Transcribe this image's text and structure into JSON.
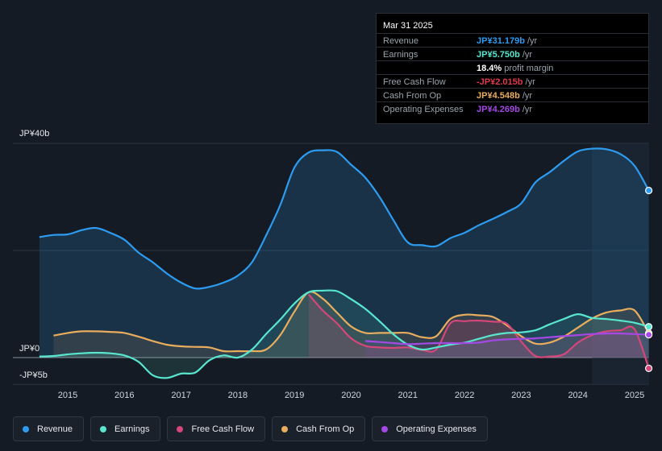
{
  "chart_data": {
    "type": "line",
    "currency": "JPY",
    "units": "billion JPY",
    "ylim": [
      -5,
      40
    ],
    "y_tick_labels": {
      "top": "JP¥40b",
      "zero": "JP¥0",
      "bottom": "-JP¥5b"
    },
    "x_tick_labels": [
      "2015",
      "2016",
      "2017",
      "2018",
      "2019",
      "2020",
      "2021",
      "2022",
      "2023",
      "2024",
      "2025"
    ],
    "highlight_start": 2024.25,
    "series": [
      {
        "name": "Revenue",
        "color": "#2d9cf0",
        "x": [
          2014.5,
          2014.75,
          2015.0,
          2015.25,
          2015.5,
          2015.75,
          2016.0,
          2016.25,
          2016.5,
          2016.75,
          2017.0,
          2017.25,
          2017.5,
          2017.75,
          2018.0,
          2018.25,
          2018.5,
          2018.75,
          2019.0,
          2019.25,
          2019.5,
          2019.75,
          2020.0,
          2020.25,
          2020.5,
          2020.75,
          2021.0,
          2021.25,
          2021.5,
          2021.75,
          2022.0,
          2022.25,
          2022.5,
          2022.75,
          2023.0,
          2023.25,
          2023.5,
          2023.75,
          2024.0,
          2024.25,
          2024.5,
          2024.75,
          2025.0,
          2025.25
        ],
        "y": [
          22.5,
          22.9,
          23.0,
          23.8,
          24.2,
          23.3,
          22.0,
          19.6,
          17.8,
          15.7,
          14.0,
          12.9,
          13.2,
          14.0,
          15.3,
          17.8,
          22.8,
          28.5,
          35.5,
          38.3,
          38.7,
          38.4,
          36.0,
          33.6,
          30.0,
          25.6,
          21.5,
          21.0,
          20.8,
          22.3,
          23.3,
          24.7,
          25.9,
          27.2,
          28.8,
          32.7,
          34.6,
          36.7,
          38.5,
          39.0,
          38.9,
          38.0,
          35.8,
          31.2
        ]
      },
      {
        "name": "Earnings",
        "color": "#58e6cf",
        "x": [
          2014.5,
          2014.75,
          2015.0,
          2015.25,
          2015.5,
          2015.75,
          2016.0,
          2016.25,
          2016.5,
          2016.75,
          2017.0,
          2017.25,
          2017.5,
          2017.75,
          2018.0,
          2018.25,
          2018.5,
          2018.75,
          2019.0,
          2019.25,
          2019.5,
          2019.75,
          2020.0,
          2020.25,
          2020.5,
          2020.75,
          2021.0,
          2021.25,
          2021.5,
          2021.75,
          2022.0,
          2022.25,
          2022.5,
          2022.75,
          2023.0,
          2023.25,
          2023.5,
          2023.75,
          2024.0,
          2024.25,
          2024.5,
          2024.75,
          2025.0,
          2025.25
        ],
        "y": [
          0.2,
          0.3,
          0.6,
          0.8,
          0.9,
          0.8,
          0.4,
          -0.8,
          -3.3,
          -3.8,
          -3.0,
          -2.8,
          -0.5,
          0.4,
          0.0,
          1.5,
          4.4,
          7.1,
          10.1,
          12.2,
          12.5,
          12.4,
          10.9,
          9.1,
          6.8,
          4.3,
          2.4,
          1.5,
          1.9,
          2.4,
          2.8,
          3.5,
          4.2,
          4.6,
          4.7,
          5.1,
          6.2,
          7.2,
          8.1,
          7.4,
          7.2,
          6.9,
          6.5,
          5.75
        ]
      },
      {
        "name": "Free Cash Flow",
        "color": "#d6467a",
        "x": [
          2019.25,
          2019.5,
          2019.75,
          2020.0,
          2020.25,
          2020.5,
          2020.75,
          2021.0,
          2021.25,
          2021.5,
          2021.75,
          2022.0,
          2022.25,
          2022.5,
          2022.75,
          2023.0,
          2023.25,
          2023.5,
          2023.75,
          2024.0,
          2024.25,
          2024.5,
          2024.75,
          2025.0,
          2025.25
        ],
        "y": [
          11.8,
          8.8,
          6.4,
          3.6,
          2.2,
          1.9,
          1.8,
          1.9,
          1.4,
          1.5,
          6.4,
          6.8,
          6.9,
          6.7,
          6.3,
          3.0,
          0.3,
          0.2,
          0.6,
          2.8,
          4.2,
          4.9,
          5.1,
          5.3,
          -2.015
        ]
      },
      {
        "name": "Cash From Op",
        "color": "#e9ad5e",
        "x": [
          2014.75,
          2015.0,
          2015.25,
          2015.5,
          2015.75,
          2016.0,
          2016.25,
          2016.5,
          2016.75,
          2017.0,
          2017.25,
          2017.5,
          2017.75,
          2018.0,
          2018.25,
          2018.5,
          2018.75,
          2019.0,
          2019.25,
          2019.5,
          2019.75,
          2020.0,
          2020.25,
          2020.5,
          2020.75,
          2021.0,
          2021.25,
          2021.5,
          2021.75,
          2022.0,
          2022.25,
          2022.5,
          2022.75,
          2023.0,
          2023.25,
          2023.5,
          2023.75,
          2024.0,
          2024.25,
          2024.5,
          2024.75,
          2025.0,
          2025.25
        ],
        "y": [
          4.1,
          4.6,
          4.9,
          4.9,
          4.8,
          4.6,
          3.9,
          3.1,
          2.4,
          2.1,
          2.0,
          1.9,
          1.2,
          1.2,
          1.2,
          1.5,
          4.2,
          8.6,
          12.2,
          11.0,
          8.4,
          5.8,
          4.6,
          4.6,
          4.6,
          4.6,
          3.8,
          4.0,
          7.2,
          8.0,
          7.9,
          7.6,
          6.0,
          4.0,
          2.6,
          2.8,
          3.9,
          5.6,
          7.3,
          8.4,
          8.8,
          8.8,
          4.548
        ]
      },
      {
        "name": "Operating Expenses",
        "color": "#a449e6",
        "x": [
          2020.25,
          2020.5,
          2020.75,
          2021.0,
          2021.25,
          2021.5,
          2021.75,
          2022.0,
          2022.25,
          2022.5,
          2022.75,
          2023.0,
          2023.25,
          2023.5,
          2023.75,
          2024.0,
          2024.25,
          2024.5,
          2024.75,
          2025.0,
          2025.25
        ],
        "y": [
          3.1,
          2.9,
          2.7,
          2.5,
          2.6,
          2.7,
          2.7,
          2.7,
          2.8,
          3.2,
          3.4,
          3.5,
          3.6,
          3.8,
          4.0,
          4.2,
          4.4,
          4.5,
          4.5,
          4.4,
          4.269
        ]
      }
    ],
    "tooltip": {
      "date": "Mar 31 2025",
      "rows": [
        {
          "label": "Revenue",
          "value": "JP¥31.179b",
          "unit": "/yr",
          "color": "#2d9cf0"
        },
        {
          "label": "Earnings",
          "value": "JP¥5.750b",
          "unit": "/yr",
          "color": "#58e6cf"
        },
        {
          "label": "",
          "value": "18.4%",
          "unit": "profit margin",
          "color": "#ffffff"
        },
        {
          "label": "Free Cash Flow",
          "value": "-JP¥2.015b",
          "unit": "/yr",
          "color": "#e0394a"
        },
        {
          "label": "Cash From Op",
          "value": "JP¥4.548b",
          "unit": "/yr",
          "color": "#e9ad5e"
        },
        {
          "label": "Operating Expenses",
          "value": "JP¥4.269b",
          "unit": "/yr",
          "color": "#a449e6"
        }
      ]
    },
    "legend": [
      {
        "label": "Revenue",
        "color": "#2d9cf0"
      },
      {
        "label": "Earnings",
        "color": "#58e6cf"
      },
      {
        "label": "Free Cash Flow",
        "color": "#d6467a"
      },
      {
        "label": "Cash From Op",
        "color": "#e9ad5e"
      },
      {
        "label": "Operating Expenses",
        "color": "#a449e6"
      }
    ]
  }
}
